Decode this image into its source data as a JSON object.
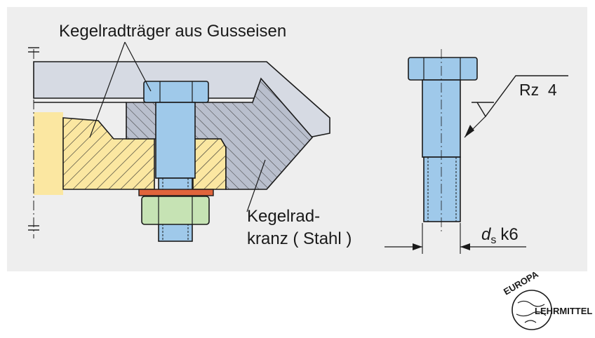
{
  "labels": {
    "carrier": "Kegelradträger aus Gusseisen",
    "ring_line1": "Kegelrad-",
    "ring_line2": "kranz ( Stahl )",
    "roughness": "Rz  4",
    "dim_symbol": "d",
    "dim_subscript": "s",
    "dim_tolerance": "k6"
  },
  "logo": {
    "top_text": "EUROPA",
    "side_text": "LEHRMITTEL"
  },
  "colors": {
    "panel": "#eeeeee",
    "cast_iron": "#fbe7a1",
    "steel": "#b9bfcd",
    "bolt": "#9fc9ea",
    "nut": "#c6e3b4",
    "washer": "#e0643c",
    "outline": "#1a1a1a"
  }
}
